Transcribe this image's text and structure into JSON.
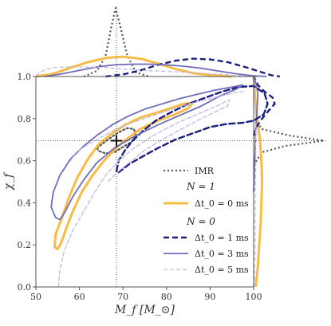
{
  "chart_data": {
    "type": "line",
    "title": "",
    "xlabel": "M_f [M_⊙]",
    "ylabel": "χ_f",
    "xlim": [
      50,
      100
    ],
    "ylim": [
      0.0,
      1.0
    ],
    "xticks": [
      "50",
      "60",
      "70",
      "80",
      "90",
      "100"
    ],
    "yticks": [
      "0.0",
      "0.2",
      "0.4",
      "0.6",
      "0.8",
      "1.0"
    ],
    "grid": false,
    "legend_placement": "lower-right",
    "reference_point": {
      "x": 68.5,
      "y": 0.695,
      "marker": "+"
    },
    "legend": {
      "imr_label": "IMR",
      "n1_header": "N = 1",
      "n1_entry": "Δt_0 = 0 ms",
      "n0_header": "N = 0",
      "n0_entries": [
        "Δt_0 = 1 ms",
        "Δt_0 = 3 ms",
        "Δt_0 = 5 ms"
      ]
    },
    "colors": {
      "imr": "#555555",
      "n1_dt0": "#f7bc45",
      "n0_dt1": "#1a1f80",
      "n0_dt3": "#6f6cbd",
      "n0_dt5": "#bdbaea"
    },
    "series": [
      {
        "name": "IMR",
        "style": "dotted",
        "color": "#555555",
        "contour": [
          [
            64,
            0.66
          ],
          [
            66.5,
            0.7
          ],
          [
            69,
            0.735
          ],
          [
            71,
            0.755
          ],
          [
            72.5,
            0.75
          ],
          [
            73,
            0.72
          ],
          [
            72,
            0.69
          ],
          [
            70,
            0.665
          ],
          [
            68,
            0.64
          ],
          [
            66,
            0.635
          ],
          [
            64.5,
            0.645
          ],
          [
            64,
            0.66
          ]
        ]
      },
      {
        "name": "N = 1, Δt_0 = 0 ms",
        "style": "solid",
        "color": "#f7bc45",
        "contour": [
          [
            54.3,
            0.19
          ],
          [
            54.5,
            0.25
          ],
          [
            56,
            0.33
          ],
          [
            57.5,
            0.42
          ],
          [
            59.5,
            0.52
          ],
          [
            62,
            0.61
          ],
          [
            64.5,
            0.68
          ],
          [
            67.5,
            0.73
          ],
          [
            70.5,
            0.77
          ],
          [
            74,
            0.805
          ],
          [
            78,
            0.83
          ],
          [
            81,
            0.85
          ],
          [
            84,
            0.87
          ],
          [
            86,
            0.875
          ],
          [
            85,
            0.85
          ],
          [
            82,
            0.82
          ],
          [
            78,
            0.79
          ],
          [
            74,
            0.75
          ],
          [
            70,
            0.69
          ],
          [
            66,
            0.61
          ],
          [
            63,
            0.53
          ],
          [
            60.5,
            0.45
          ],
          [
            58.5,
            0.36
          ],
          [
            57,
            0.28
          ],
          [
            55.8,
            0.21
          ],
          [
            55,
            0.18
          ],
          [
            54.3,
            0.19
          ]
        ]
      },
      {
        "name": "N = 0, Δt_0 = 1 ms",
        "style": "dashed",
        "color": "#1a1f80",
        "contour": [
          [
            68.5,
            0.55
          ],
          [
            69,
            0.6
          ],
          [
            70.5,
            0.65
          ],
          [
            72,
            0.69
          ],
          [
            74.5,
            0.74
          ],
          [
            77.5,
            0.79
          ],
          [
            81,
            0.83
          ],
          [
            85,
            0.87
          ],
          [
            89,
            0.9
          ],
          [
            93,
            0.93
          ],
          [
            96.5,
            0.95
          ],
          [
            100,
            0.955
          ],
          [
            102.5,
            0.92
          ],
          [
            103.2,
            0.87
          ],
          [
            102.3,
            0.82
          ],
          [
            100,
            0.79
          ],
          [
            97.5,
            0.78
          ],
          [
            94,
            0.775
          ],
          [
            90,
            0.76
          ],
          [
            86,
            0.73
          ],
          [
            82,
            0.7
          ],
          [
            78,
            0.66
          ],
          [
            74.5,
            0.62
          ],
          [
            71.5,
            0.585
          ],
          [
            70,
            0.56
          ],
          [
            69,
            0.545
          ],
          [
            68.5,
            0.55
          ]
        ]
      },
      {
        "name": "N = 0, Δt_0 = 3 ms",
        "style": "solid",
        "color": "#6f6cbd",
        "contour": [
          [
            54.5,
            0.33
          ],
          [
            53.5,
            0.38
          ],
          [
            54,
            0.45
          ],
          [
            55.5,
            0.53
          ],
          [
            58,
            0.61
          ],
          [
            61,
            0.67
          ],
          [
            64,
            0.72
          ],
          [
            67.5,
            0.77
          ],
          [
            71,
            0.81
          ],
          [
            75,
            0.845
          ],
          [
            79,
            0.87
          ],
          [
            83,
            0.895
          ],
          [
            87,
            0.915
          ],
          [
            91,
            0.935
          ],
          [
            95,
            0.95
          ],
          [
            97.5,
            0.96
          ],
          [
            96,
            0.94
          ],
          [
            92,
            0.905
          ],
          [
            88,
            0.86
          ],
          [
            83,
            0.815
          ],
          [
            78,
            0.77
          ],
          [
            73,
            0.72
          ],
          [
            68,
            0.66
          ],
          [
            64,
            0.59
          ],
          [
            61,
            0.51
          ],
          [
            58.5,
            0.43
          ],
          [
            56.5,
            0.35
          ],
          [
            55.5,
            0.32
          ],
          [
            54.5,
            0.33
          ]
        ]
      },
      {
        "name": "N = 0, Δt_0 = 5 ms",
        "style": "dashed",
        "color": "#bdbaea",
        "contour": [
          [
            55.2,
            0.0
          ],
          [
            55.5,
            0.08
          ],
          [
            56.5,
            0.17
          ],
          [
            58.5,
            0.27
          ],
          [
            61,
            0.36
          ],
          [
            63.5,
            0.45
          ],
          [
            66,
            0.53
          ],
          [
            69,
            0.6
          ],
          [
            72.5,
            0.66
          ],
          [
            77,
            0.72
          ],
          [
            82,
            0.775
          ],
          [
            87,
            0.82
          ],
          [
            91.5,
            0.86
          ],
          [
            94.5,
            0.89
          ],
          [
            94,
            0.86
          ],
          [
            91,
            0.83
          ],
          [
            87,
            0.79
          ],
          [
            83,
            0.745
          ],
          [
            79,
            0.7
          ],
          [
            75,
            0.65
          ],
          [
            72,
            0.6
          ],
          [
            69,
            0.55
          ],
          [
            66.5,
            0.5
          ]
        ]
      },
      {
        "name": "N = 0, Δt_0 = 5 ms (upper)",
        "style": "dashed",
        "color": "#bdbaea",
        "contour": [
          [
            58,
            0.6
          ],
          [
            59,
            0.635
          ],
          [
            61,
            0.665
          ],
          [
            64,
            0.7
          ],
          [
            68,
            0.745
          ],
          [
            72,
            0.78
          ],
          [
            77,
            0.815
          ],
          [
            82,
            0.85
          ],
          [
            87,
            0.88
          ],
          [
            92,
            0.905
          ],
          [
            96,
            0.925
          ],
          [
            98,
            0.93
          ]
        ]
      }
    ],
    "marginal_top": {
      "x_axis": "M_f",
      "curves": [
        {
          "name": "IMR",
          "color": "#555555",
          "style": "dotted",
          "points": [
            [
              61,
              0
            ],
            [
              64,
              0.08
            ],
            [
              66,
              0.3
            ],
            [
              67.3,
              0.72
            ],
            [
              68.3,
              1.0
            ],
            [
              69.3,
              0.75
            ],
            [
              71,
              0.3
            ],
            [
              73,
              0.06
            ],
            [
              76,
              0
            ]
          ]
        },
        {
          "name": "N = 1, Δt_0 = 0 ms",
          "color": "#f7bc45",
          "style": "solid",
          "points": [
            [
              50,
              0
            ],
            [
              54,
              0.04
            ],
            [
              58,
              0.13
            ],
            [
              62,
              0.21
            ],
            [
              66,
              0.27
            ],
            [
              70,
              0.29
            ],
            [
              74,
              0.26
            ],
            [
              78,
              0.19
            ],
            [
              82,
              0.11
            ],
            [
              86,
              0.05
            ],
            [
              90,
              0.02
            ],
            [
              95,
              0
            ]
          ]
        },
        {
          "name": "N = 0, Δt_0 = 1 ms",
          "color": "#1a1f80",
          "style": "dashed",
          "points": [
            [
              66,
              0
            ],
            [
              70,
              0.03
            ],
            [
              74,
              0.09
            ],
            [
              78,
              0.17
            ],
            [
              82,
              0.23
            ],
            [
              86,
              0.26
            ],
            [
              90,
              0.25
            ],
            [
              94,
              0.21
            ],
            [
              98,
              0.14
            ],
            [
              101,
              0.08
            ],
            [
              104,
              0.02
            ],
            [
              106,
              0
            ]
          ]
        },
        {
          "name": "N = 0, Δt_0 = 3 ms",
          "color": "#6f6cbd",
          "style": "solid",
          "points": [
            [
              52,
              0
            ],
            [
              56,
              0.04
            ],
            [
              60,
              0.09
            ],
            [
              64,
              0.14
            ],
            [
              68,
              0.17
            ],
            [
              72,
              0.18
            ],
            [
              76,
              0.18
            ],
            [
              80,
              0.17
            ],
            [
              84,
              0.15
            ],
            [
              88,
              0.12
            ],
            [
              92,
              0.08
            ],
            [
              96,
              0.04
            ],
            [
              100,
              0.01
            ],
            [
              103,
              0
            ]
          ]
        },
        {
          "name": "N = 0, Δt_0 = 5 ms",
          "color": "#bdbaea",
          "style": "dashed",
          "points": [
            [
              50,
              0.02
            ],
            [
              52,
              0.1
            ],
            [
              54,
              0.13
            ],
            [
              58,
              0.14
            ],
            [
              62,
              0.14
            ],
            [
              66,
              0.13
            ],
            [
              70,
              0.11
            ],
            [
              74,
              0.09
            ],
            [
              78,
              0.08
            ],
            [
              82,
              0.07
            ],
            [
              86,
              0.06
            ],
            [
              90,
              0.04
            ],
            [
              95,
              0.02
            ],
            [
              100,
              0
            ]
          ]
        }
      ]
    },
    "marginal_right": {
      "y_axis": "χ_f",
      "curves": [
        {
          "name": "IMR",
          "color": "#555555",
          "style": "dotted",
          "points": [
            [
              0.58,
              0
            ],
            [
              0.64,
              0.12
            ],
            [
              0.67,
              0.45
            ],
            [
              0.695,
              1.0
            ],
            [
              0.72,
              0.5
            ],
            [
              0.75,
              0.12
            ],
            [
              0.8,
              0
            ]
          ]
        },
        {
          "name": "N = 1, Δt_0 = 0 ms",
          "color": "#f7bc45",
          "style": "solid",
          "points": [
            [
              0.0,
              0.03
            ],
            [
              0.1,
              0.06
            ],
            [
              0.2,
              0.08
            ],
            [
              0.3,
              0.1
            ],
            [
              0.4,
              0.11
            ],
            [
              0.5,
              0.12
            ],
            [
              0.6,
              0.11
            ],
            [
              0.7,
              0.09
            ],
            [
              0.8,
              0.05
            ],
            [
              0.9,
              0.02
            ],
            [
              1.0,
              0
            ]
          ]
        },
        {
          "name": "N = 0, Δt_0 = 1 ms",
          "color": "#1a1f80",
          "style": "dashed",
          "points": [
            [
              0.72,
              0
            ],
            [
              0.76,
              0.04
            ],
            [
              0.8,
              0.12
            ],
            [
              0.84,
              0.22
            ],
            [
              0.87,
              0.3
            ],
            [
              0.9,
              0.27
            ],
            [
              0.93,
              0.15
            ],
            [
              0.96,
              0.06
            ],
            [
              1.0,
              0
            ]
          ]
        },
        {
          "name": "N = 0, Δt_0 = 3 ms",
          "color": "#6f6cbd",
          "style": "solid",
          "points": [
            [
              0.45,
              0
            ],
            [
              0.55,
              0.01
            ],
            [
              0.65,
              0.02
            ],
            [
              0.75,
              0.03
            ],
            [
              0.85,
              0.05
            ],
            [
              0.92,
              0.06
            ],
            [
              0.96,
              0.04
            ],
            [
              1.0,
              0
            ]
          ]
        },
        {
          "name": "N = 0, Δt_0 = 5 ms",
          "color": "#bdbaea",
          "style": "dashed",
          "points": [
            [
              0.0,
              0.01
            ],
            [
              0.2,
              0.02
            ],
            [
              0.4,
              0.02
            ],
            [
              0.6,
              0.03
            ],
            [
              0.8,
              0.03
            ],
            [
              1.0,
              0
            ]
          ]
        }
      ]
    }
  }
}
